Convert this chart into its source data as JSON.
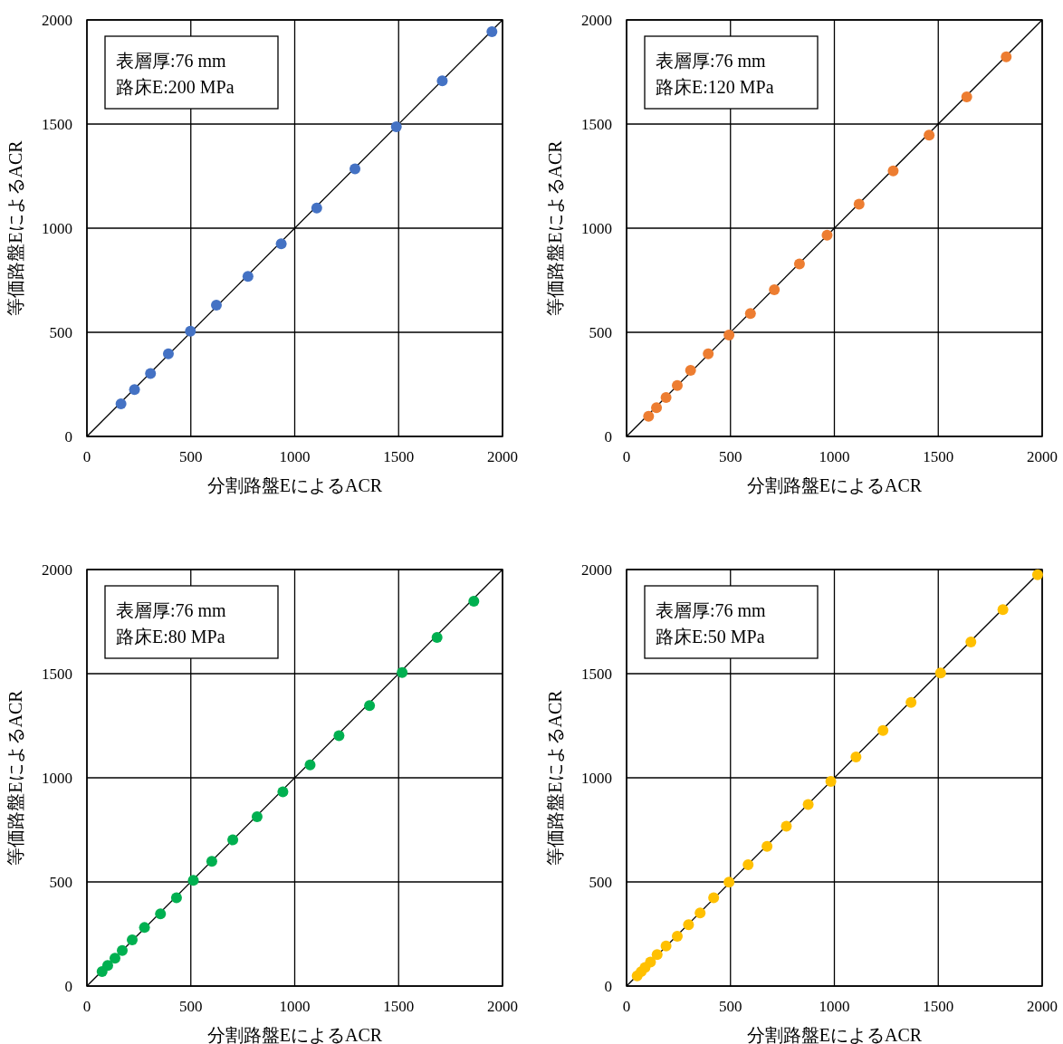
{
  "chart_data": [
    {
      "type": "scatter",
      "xlabel": "分割路盤EによるACR",
      "ylabel": "等価路盤EによるACR",
      "annotations": [
        "表層厚:76 mm",
        "路床E:200 MPa"
      ],
      "xlim": [
        0,
        2000
      ],
      "ylim": [
        0,
        2000
      ],
      "xticks": [
        0,
        500,
        1000,
        1500,
        2000
      ],
      "yticks": [
        0,
        500,
        1000,
        1500,
        2000
      ],
      "grid": true,
      "series": [
        {
          "type": "scatter",
          "marker": "circle",
          "color": "#4472c4",
          "x": [
            164,
            229,
            306,
            392,
            498,
            623,
            775,
            935,
            1106,
            1290,
            1489,
            1710,
            1949
          ],
          "values": [
            157,
            225,
            302,
            397,
            505,
            630,
            768,
            925,
            1097,
            1285,
            1487,
            1708,
            1943
          ]
        },
        {
          "type": "line",
          "marker": "none",
          "color": "#000000",
          "x": [
            0,
            2000
          ],
          "values": [
            0,
            2000
          ]
        }
      ]
    },
    {
      "type": "scatter",
      "xlabel": "分割路盤EによるACR",
      "ylabel": "等価路盤EによるACR",
      "annotations": [
        "表層厚:76 mm",
        "路床E:120 MPa"
      ],
      "xlim": [
        0,
        2000
      ],
      "ylim": [
        0,
        2000
      ],
      "xticks": [
        0,
        500,
        1000,
        1500,
        2000
      ],
      "yticks": [
        0,
        500,
        1000,
        1500,
        2000
      ],
      "grid": true,
      "series": [
        {
          "type": "scatter",
          "marker": "circle",
          "color": "#ed7d31",
          "x": [
            106,
            144,
            190,
            244,
            308,
            393,
            493,
            596,
            711,
            832,
            965,
            1119,
            1283,
            1456,
            1637,
            1827
          ],
          "values": [
            97,
            138,
            187,
            245,
            317,
            397,
            487,
            590,
            704,
            828,
            966,
            1115,
            1275,
            1447,
            1630,
            1823
          ]
        },
        {
          "type": "line",
          "marker": "none",
          "color": "#000000",
          "x": [
            0,
            2000
          ],
          "values": [
            0,
            2000
          ]
        }
      ]
    },
    {
      "type": "scatter",
      "xlabel": "分割路盤EによるACR",
      "ylabel": "等価路盤EによるACR",
      "annotations": [
        "表層厚:76 mm",
        "路床E:80 MPa"
      ],
      "xlim": [
        0,
        2000
      ],
      "ylim": [
        0,
        2000
      ],
      "xticks": [
        0,
        500,
        1000,
        1500,
        2000
      ],
      "yticks": [
        0,
        500,
        1000,
        1500,
        2000
      ],
      "grid": true,
      "series": [
        {
          "type": "scatter",
          "marker": "circle",
          "color": "#00b050",
          "x": [
            73,
            100,
            135,
            170,
            218,
            277,
            354,
            431,
            512,
            601,
            702,
            819,
            943,
            1074,
            1213,
            1360,
            1517,
            1685,
            1862
          ],
          "values": [
            70,
            99,
            134,
            171,
            222,
            281,
            347,
            424,
            508,
            599,
            702,
            813,
            933,
            1062,
            1202,
            1347,
            1505,
            1674,
            1848
          ]
        },
        {
          "type": "line",
          "marker": "none",
          "color": "#000000",
          "x": [
            0,
            2000
          ],
          "values": [
            0,
            2000
          ]
        }
      ]
    },
    {
      "type": "scatter",
      "xlabel": "分割路盤EによるACR",
      "ylabel": "等価路盤EによるACR",
      "annotations": [
        "表層厚:76 mm",
        "路床E:50 MPa"
      ],
      "xlim": [
        0,
        2000
      ],
      "ylim": [
        0,
        2000
      ],
      "xticks": [
        0,
        500,
        1000,
        1500,
        2000
      ],
      "yticks": [
        0,
        500,
        1000,
        1500,
        2000
      ],
      "grid": true,
      "series": [
        {
          "type": "scatter",
          "marker": "circle",
          "color": "#ffc000",
          "x": [
            51,
            70,
            89,
            115,
            147,
            190,
            244,
            298,
            354,
            419,
            493,
            585,
            676,
            769,
            874,
            983,
            1104,
            1234,
            1369,
            1511,
            1657,
            1811,
            1978
          ],
          "values": [
            49,
            69,
            89,
            115,
            151,
            192,
            239,
            295,
            351,
            424,
            499,
            583,
            671,
            767,
            872,
            983,
            1100,
            1227,
            1362,
            1503,
            1652,
            1808,
            1975
          ]
        },
        {
          "type": "line",
          "marker": "none",
          "color": "#000000",
          "x": [
            0,
            2000
          ],
          "values": [
            0,
            2000
          ]
        }
      ]
    }
  ]
}
